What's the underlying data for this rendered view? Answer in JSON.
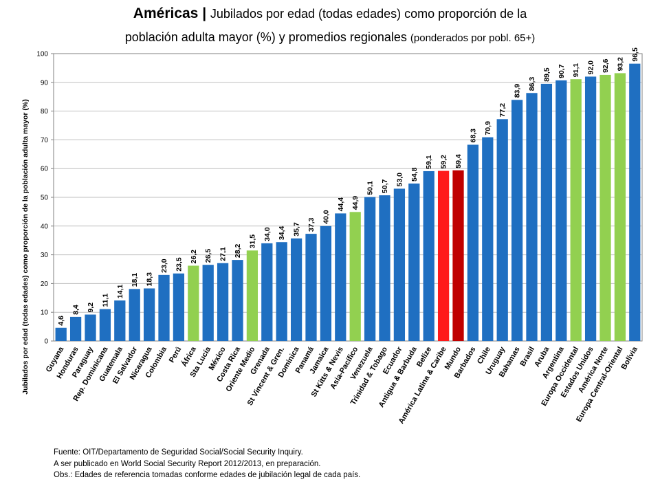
{
  "title": {
    "part1": "Américas | ",
    "part2": "Jubilados por edad (todas edades) como proporción de la",
    "part3": "población adulta mayor (%) y promedios regionales ",
    "part4": "(ponderados por pobl. 65+)"
  },
  "footer": {
    "line1": "Fuente: OIT/Departamento de Seguridad Social/Social Security Inquiry.",
    "line2": "A ser publicado en World Social Security Report 2012/2013,   en preparación.",
    "line3": "Obs.: Edades de referencia tomadas conforme edades de jubilación legal de cada país."
  },
  "colors": {
    "country": "#1f6fc1",
    "regional": "#92d050",
    "latam": "#ff1a1a",
    "world": "#c00000",
    "grid": "#bfbfbf",
    "axis": "#808080"
  },
  "chart_data": {
    "type": "bar",
    "ylabel": "Jubilados por edad (todas edades) como proporción de la población adulta mayor (%)",
    "ylim": [
      0,
      100
    ],
    "yticks": [
      0,
      10,
      20,
      30,
      40,
      50,
      60,
      70,
      80,
      90,
      100
    ],
    "grid": true,
    "categories": [
      "Guyana",
      "Honduras",
      "Paraguay",
      "Rep. Dominicana",
      "Guatemala",
      "El Salvador",
      "Nicaragua",
      "Colombia",
      "Perú",
      "África",
      "Sta Lucía",
      "México",
      "Costa Rica",
      "Oriente Medio",
      "Grenada",
      "St Vincent & Gren.",
      "Dominica",
      "Panamá",
      "Jamaica",
      "St Kitts & Nevis",
      "Asia-Pacífico",
      "Venezuela",
      "Trinidad & Tobago",
      "Ecuador",
      "Antigua & Barbuda",
      "Belize",
      "América Latina & Caribe",
      "Mundo",
      "Barbados",
      "Chile",
      "Uruguay",
      "Bahamas",
      "Brasil",
      "Aruba",
      "Argentina",
      "Europa Occidental",
      "Estados Unidos",
      "América Norte",
      "Europa Central-Oriental",
      "Bolivia"
    ],
    "values": [
      4.6,
      8.4,
      9.2,
      11.1,
      14.1,
      18.1,
      18.3,
      23.0,
      23.5,
      26.2,
      26.5,
      27.1,
      28.2,
      31.5,
      34.0,
      34.4,
      35.7,
      37.3,
      40.0,
      44.4,
      44.9,
      50.1,
      50.7,
      53.0,
      54.8,
      59.1,
      59.2,
      59.4,
      68.3,
      70.9,
      77.2,
      83.9,
      86.3,
      89.5,
      90.7,
      91.1,
      92.0,
      92.6,
      93.2,
      96.5
    ],
    "labels": [
      "4,6",
      "8,4",
      "9,2",
      "11,1",
      "14,1",
      "18,1",
      "18,3",
      "23,0",
      "23,5",
      "26,2",
      "26,5",
      "27,1",
      "28,2",
      "31,5",
      "34,0",
      "34,4",
      "35,7",
      "37,3",
      "40,0",
      "44,4",
      "44,9",
      "50,1",
      "50,7",
      "53,0",
      "54,8",
      "59,1",
      "59,2",
      "59,4",
      "68,3",
      "70,9",
      "77,2",
      "83,9",
      "86,3",
      "89,5",
      "90,7",
      "91,1",
      "92,0",
      "92,6",
      "93,2",
      "96,5"
    ],
    "groups": [
      "country",
      "country",
      "country",
      "country",
      "country",
      "country",
      "country",
      "country",
      "country",
      "regional",
      "country",
      "country",
      "country",
      "regional",
      "country",
      "country",
      "country",
      "country",
      "country",
      "country",
      "regional",
      "country",
      "country",
      "country",
      "country",
      "country",
      "latam",
      "world",
      "country",
      "country",
      "country",
      "country",
      "country",
      "country",
      "country",
      "regional",
      "country",
      "regional",
      "regional",
      "country"
    ]
  }
}
